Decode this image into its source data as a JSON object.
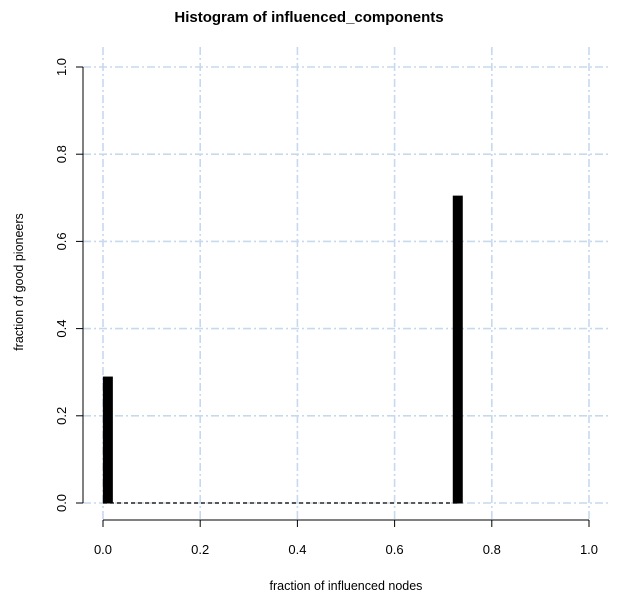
{
  "chart_data": {
    "type": "bar",
    "title": "Histogram of influenced_components",
    "xlabel": "fraction of influenced nodes",
    "ylabel": "fraction of good pioneers",
    "xlim": [
      0,
      1
    ],
    "ylim": [
      0,
      1
    ],
    "xticks": [
      0.0,
      0.2,
      0.4,
      0.6,
      0.8,
      1.0
    ],
    "yticks": [
      0.0,
      0.2,
      0.4,
      0.6,
      0.8,
      1.0
    ],
    "xtick_labels": [
      "0.0",
      "0.2",
      "0.4",
      "0.6",
      "0.8",
      "1.0"
    ],
    "ytick_labels": [
      "0.0",
      "0.2",
      "0.4",
      "0.6",
      "0.8",
      "1.0"
    ],
    "grid": true,
    "bars": [
      {
        "x": 0.01,
        "value": 0.29
      },
      {
        "x": 0.73,
        "value": 0.705
      }
    ],
    "baseline_range": [
      0.0,
      0.73
    ],
    "colors": {
      "bar": "#000000",
      "grid": "#c6d9ee",
      "axis": "#000000",
      "background": "#ffffff"
    }
  }
}
